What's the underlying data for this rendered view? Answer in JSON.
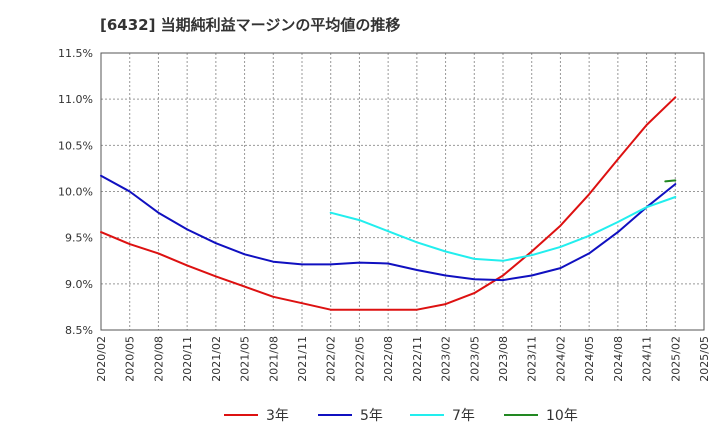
{
  "chart_data": {
    "type": "line",
    "title": "[6432]  当期純利益マージンの平均値の推移",
    "xlabel": "",
    "ylabel": "",
    "x": [
      "2020/02",
      "2020/05",
      "2020/08",
      "2020/11",
      "2021/02",
      "2021/05",
      "2021/08",
      "2021/11",
      "2022/02",
      "2022/05",
      "2022/08",
      "2022/11",
      "2023/02",
      "2023/05",
      "2023/08",
      "2023/11",
      "2024/02",
      "2024/05",
      "2024/08",
      "2024/11",
      "2025/02",
      "2025/05"
    ],
    "ylim": [
      8.5,
      11.5
    ],
    "yticks": [
      "8.5%",
      "9.0%",
      "9.5%",
      "10.0%",
      "10.5%",
      "11.0%",
      "11.5%"
    ],
    "grid": true,
    "legend_position": "bottom",
    "series": [
      {
        "name": "3年",
        "color": "#dd1111",
        "values": [
          9.56,
          9.43,
          9.33,
          9.2,
          9.08,
          8.97,
          8.86,
          8.79,
          8.72,
          8.72,
          8.72,
          8.72,
          8.78,
          8.9,
          9.09,
          9.35,
          9.63,
          9.97,
          10.35,
          10.72,
          11.02,
          null
        ]
      },
      {
        "name": "5年",
        "color": "#1010c0",
        "values": [
          10.17,
          10.0,
          9.77,
          9.59,
          9.44,
          9.32,
          9.24,
          9.21,
          9.21,
          9.23,
          9.22,
          9.15,
          9.09,
          9.05,
          9.04,
          9.09,
          9.17,
          9.33,
          9.56,
          9.83,
          10.08,
          null
        ]
      },
      {
        "name": "7年",
        "color": "#22eeee",
        "values": [
          null,
          null,
          null,
          null,
          null,
          null,
          null,
          null,
          9.77,
          9.69,
          9.57,
          9.45,
          9.35,
          9.27,
          9.25,
          9.31,
          9.4,
          9.52,
          9.67,
          9.83,
          9.94,
          null
        ]
      },
      {
        "name": "10年",
        "color": "#228822",
        "values": [
          null,
          null,
          null,
          null,
          null,
          null,
          null,
          null,
          null,
          null,
          null,
          null,
          null,
          null,
          null,
          null,
          null,
          null,
          null,
          null,
          10.12,
          null
        ]
      }
    ]
  }
}
